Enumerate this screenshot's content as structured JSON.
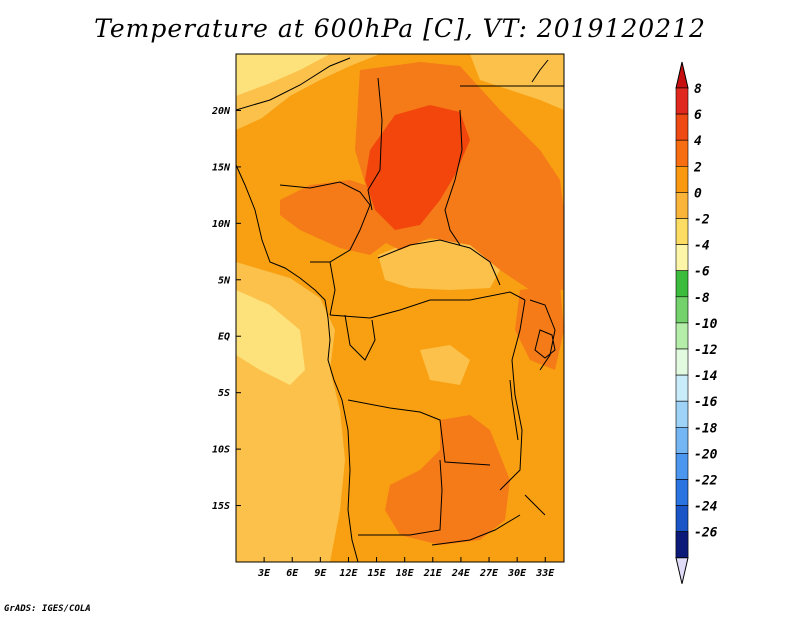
{
  "title": "Temperature at 600hPa [C], VT: 2019120212",
  "credit": "GrADS: IGES/COLA",
  "map": {
    "lon_range": [
      0,
      35
    ],
    "lat_range": [
      -20,
      25
    ],
    "y_ticks": [
      "20N",
      "15N",
      "10N",
      "5N",
      "EQ",
      "5S",
      "10S",
      "15S"
    ],
    "y_tick_values": [
      20,
      15,
      10,
      5,
      0,
      -5,
      -10,
      -15
    ],
    "x_ticks": [
      "3E",
      "6E",
      "9E",
      "12E",
      "15E",
      "18E",
      "21E",
      "24E",
      "27E",
      "30E",
      "33E"
    ],
    "x_tick_values": [
      3,
      6,
      9,
      12,
      15,
      18,
      21,
      24,
      27,
      30,
      33
    ]
  },
  "colorbar": {
    "labels": [
      "8",
      "6",
      "4",
      "2",
      "0",
      "-2",
      "-4",
      "-6",
      "-8",
      "-10",
      "-12",
      "-14",
      "-16",
      "-18",
      "-20",
      "-22",
      "-24",
      "-26"
    ],
    "colors": [
      "#e0281f",
      "#f04a14",
      "#f76d12",
      "#fa9810",
      "#fbb43a",
      "#fcdc62",
      "#fdf5a8",
      "#3cbc3c",
      "#73d26b",
      "#b4eea8",
      "#e2fbe0",
      "#c8ecfa",
      "#9ed2f7",
      "#74b6f4",
      "#4b96ef",
      "#2a74e2",
      "#1a55c8",
      "#1339a8",
      "#0b1a78"
    ],
    "top_triangle_color": "#c80f0f",
    "bottom_triangle_color": "#e0dcf8"
  },
  "fields": {
    "background_color": "#f8a012",
    "cool_color": "#fbc14a",
    "coolest_color": "#fde17a",
    "warm_color": "#f57a18",
    "hot_color": "#f2460c"
  }
}
